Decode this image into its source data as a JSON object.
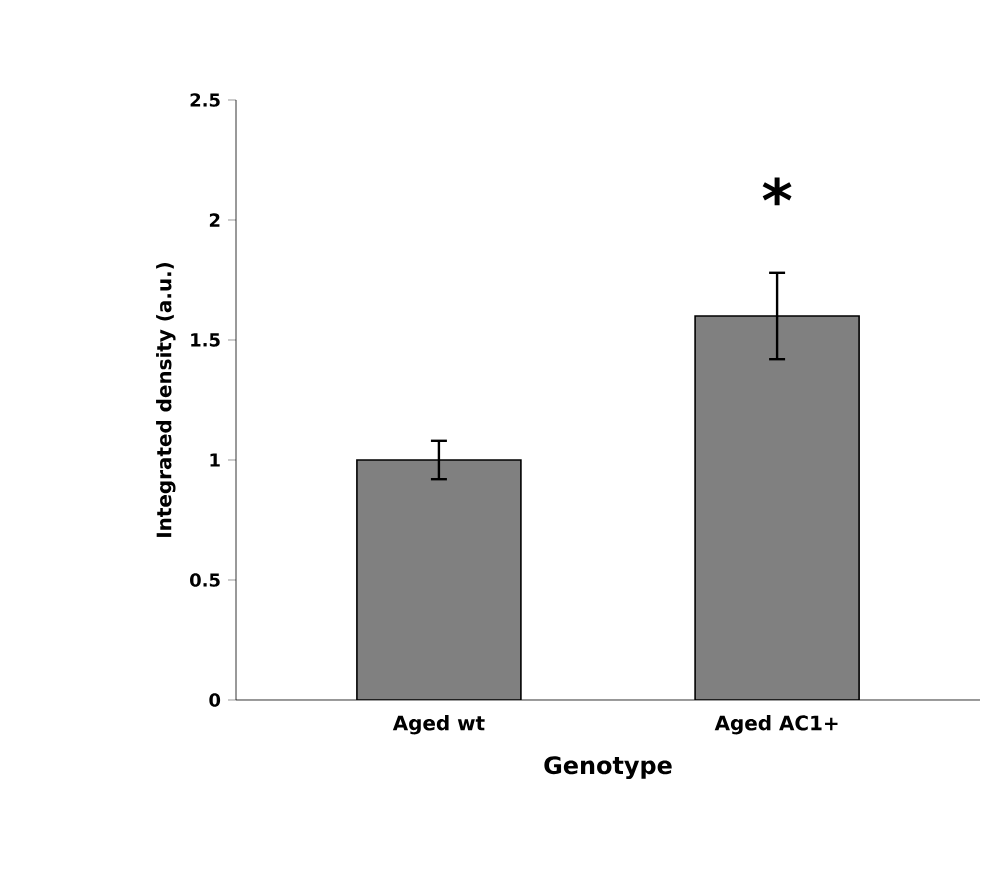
{
  "chart_data": {
    "type": "bar",
    "xlabel": "Genotype",
    "ylabel": "Integrated density (a.u.)",
    "categories": [
      "Aged wt",
      "Aged AC1+"
    ],
    "values": [
      1.0,
      1.6
    ],
    "errors": [
      0.08,
      0.18
    ],
    "color": "#808080",
    "ylim": [
      0,
      2.5
    ],
    "yticks": [
      0,
      0.5,
      1,
      1.5,
      2,
      2.5
    ],
    "annotations": [
      "*"
    ]
  }
}
